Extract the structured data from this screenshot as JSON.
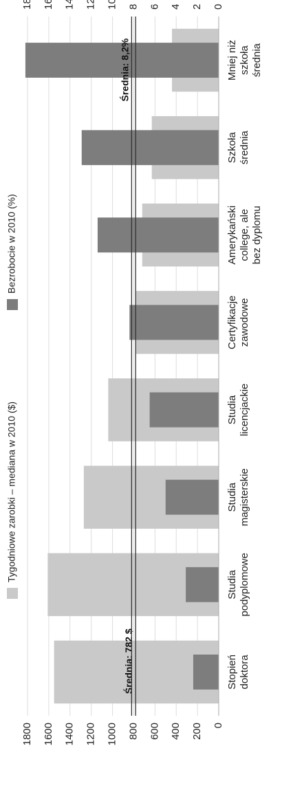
{
  "chart_data": {
    "type": "bar",
    "orientation": "rotated-90",
    "categories": [
      [
        "Stopień",
        "doktora"
      ],
      [
        "Studia",
        "podyplomowe"
      ],
      [
        "Studia",
        "magisterskie"
      ],
      [
        "Studia",
        "licencjackie"
      ],
      [
        "Certyfikacje",
        "zawodowe"
      ],
      [
        "Amerykański",
        "college, ale",
        "bez dyplomu"
      ],
      [
        "Szkoła",
        "średnia"
      ],
      [
        "Mniej niż",
        "szkoła",
        "średnia"
      ]
    ],
    "series": [
      {
        "name": "Tygodniowe zarobki – mediana w 2010 ($)",
        "color": "#c9c9c9",
        "axis": "earnings",
        "values": [
          1550,
          1610,
          1270,
          1040,
          780,
          720,
          630,
          440
        ]
      },
      {
        "name": "Bezrobocie w 2010 (%)",
        "color": "#7d7d7d",
        "axis": "unemployment",
        "values": [
          2.4,
          3.1,
          5.0,
          6.5,
          8.4,
          11.4,
          12.9,
          18.2
        ]
      }
    ],
    "earnings_axis": {
      "min": 0,
      "max": 1800,
      "ticks": [
        "0",
        "200",
        "400",
        "600",
        "800",
        "1000",
        "1200",
        "1400",
        "1600",
        "1800"
      ]
    },
    "unemployment_axis": {
      "min": 0,
      "max": 18,
      "ticks": [
        "0",
        "2",
        "4",
        "6",
        "8",
        "10",
        "12",
        "14",
        "16",
        "18"
      ]
    },
    "averages": [
      {
        "label": "Średnia: 782 $",
        "axis": "earnings",
        "value": 782
      },
      {
        "label": "Średnia: 8,2%",
        "axis": "unemployment",
        "value": 8.2
      }
    ],
    "grid": true
  }
}
